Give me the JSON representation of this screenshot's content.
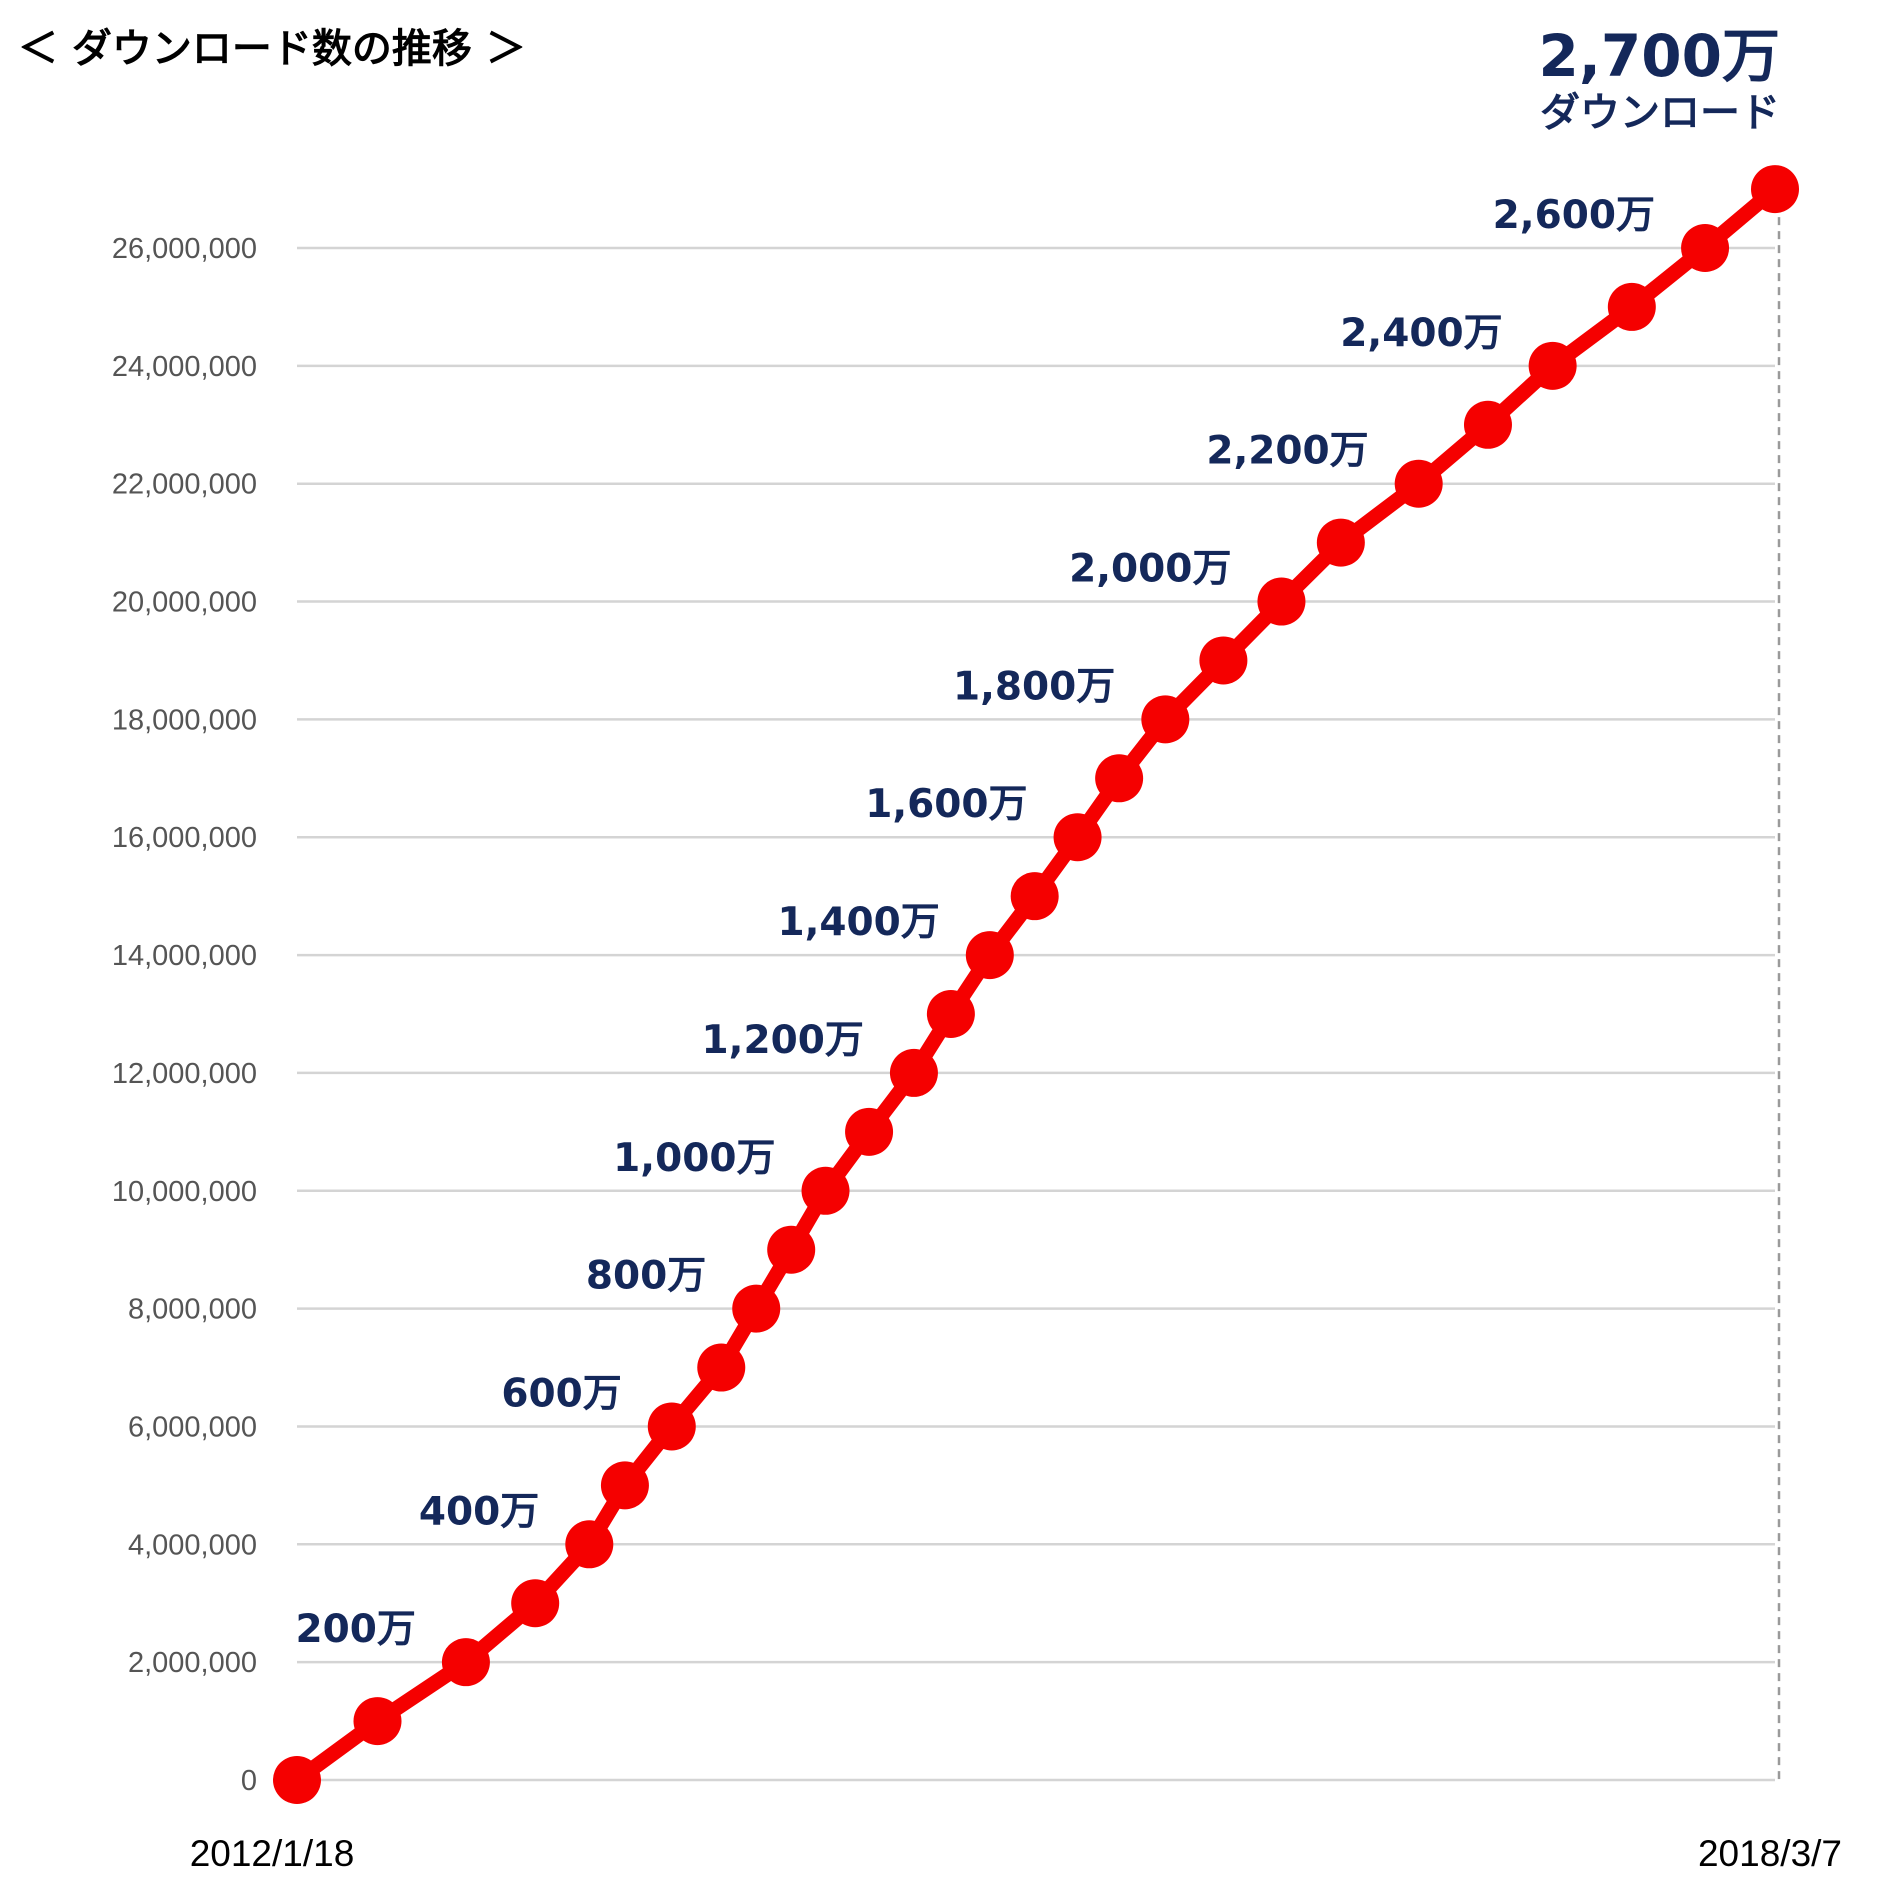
{
  "title": "＜ ダウンロード数の推移 ＞",
  "total": {
    "value": "2,700万",
    "unit": "ダウンロード"
  },
  "colors": {
    "line": "#f50000",
    "label": "#14285a",
    "grid": "#d4d4d4",
    "axis_text": "#555555"
  },
  "chart_data": {
    "type": "line",
    "title": "＜ ダウンロード数の推移 ＞",
    "xlabel": "",
    "ylabel": "",
    "ylim": [
      0,
      26000000
    ],
    "y_ticks": [
      {
        "value": 0,
        "label": "0"
      },
      {
        "value": 2000000,
        "label": "2,000,000"
      },
      {
        "value": 4000000,
        "label": "4,000,000"
      },
      {
        "value": 6000000,
        "label": "6,000,000"
      },
      {
        "value": 8000000,
        "label": "8,000,000"
      },
      {
        "value": 10000000,
        "label": "10,000,000"
      },
      {
        "value": 12000000,
        "label": "12,000,000"
      },
      {
        "value": 14000000,
        "label": "14,000,000"
      },
      {
        "value": 16000000,
        "label": "16,000,000"
      },
      {
        "value": 18000000,
        "label": "18,000,000"
      },
      {
        "value": 20000000,
        "label": "20,000,000"
      },
      {
        "value": 22000000,
        "label": "22,000,000"
      },
      {
        "value": 24000000,
        "label": "24,000,000"
      },
      {
        "value": 26000000,
        "label": "26,000,000"
      }
    ],
    "x_start_label": "2012/1/18",
    "x_end_label": "2018/3/7",
    "x_range_days": [
      0,
      2240
    ],
    "series": [
      {
        "name": "ダウンロード数",
        "points": [
          {
            "day": 0,
            "value": 0
          },
          {
            "day": 122,
            "value": 1000000
          },
          {
            "day": 256,
            "value": 2000000
          },
          {
            "day": 361,
            "value": 3000000
          },
          {
            "day": 443,
            "value": 4000000
          },
          {
            "day": 497,
            "value": 5000000
          },
          {
            "day": 568,
            "value": 6000000
          },
          {
            "day": 643,
            "value": 7000000
          },
          {
            "day": 696,
            "value": 8000000
          },
          {
            "day": 749,
            "value": 9000000
          },
          {
            "day": 801,
            "value": 10000000
          },
          {
            "day": 867,
            "value": 11000000
          },
          {
            "day": 935,
            "value": 12000000
          },
          {
            "day": 991,
            "value": 13000000
          },
          {
            "day": 1050,
            "value": 14000000
          },
          {
            "day": 1118,
            "value": 15000000
          },
          {
            "day": 1183,
            "value": 16000000
          },
          {
            "day": 1246,
            "value": 17000000
          },
          {
            "day": 1316,
            "value": 18000000
          },
          {
            "day": 1404,
            "value": 19000000
          },
          {
            "day": 1492,
            "value": 20000000
          },
          {
            "day": 1582,
            "value": 21000000
          },
          {
            "day": 1700,
            "value": 22000000
          },
          {
            "day": 1805,
            "value": 23000000
          },
          {
            "day": 1903,
            "value": 24000000
          },
          {
            "day": 2023,
            "value": 25000000
          },
          {
            "day": 2134,
            "value": 26000000
          },
          {
            "day": 2240,
            "value": 27000000
          }
        ]
      }
    ],
    "annotations": [
      {
        "text": "200万",
        "value": 2000000
      },
      {
        "text": "400万",
        "value": 4000000
      },
      {
        "text": "600万",
        "value": 6000000
      },
      {
        "text": "800万",
        "value": 8000000
      },
      {
        "text": "1,000万",
        "value": 10000000
      },
      {
        "text": "1,200万",
        "value": 12000000
      },
      {
        "text": "1,400万",
        "value": 14000000
      },
      {
        "text": "1,600万",
        "value": 16000000
      },
      {
        "text": "1,800万",
        "value": 18000000
      },
      {
        "text": "2,000万",
        "value": 20000000
      },
      {
        "text": "2,200万",
        "value": 22000000
      },
      {
        "text": "2,400万",
        "value": 24000000
      },
      {
        "text": "2,600万",
        "value": 26000000
      }
    ],
    "grid": true,
    "legend": "none"
  }
}
